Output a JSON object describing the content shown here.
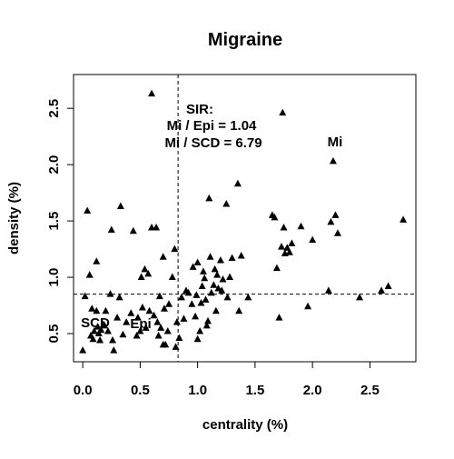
{
  "chart_data": {
    "type": "scatter",
    "title": "Migraine",
    "xlabel": "centrality (%)",
    "ylabel": "density (%)",
    "xlim": [
      -0.08,
      2.9
    ],
    "ylim": [
      0.25,
      2.8
    ],
    "xticks": [
      0.0,
      0.5,
      1.0,
      1.5,
      2.0,
      2.5
    ],
    "xtick_labels": [
      "0.0",
      "0.5",
      "1.0",
      "1.5",
      "2.0",
      "2.5"
    ],
    "yticks": [
      0.5,
      1.0,
      1.5,
      2.0,
      2.5
    ],
    "ytick_labels": [
      "0.5",
      "1.0",
      "1.5",
      "2.0",
      "2.5"
    ],
    "grid": false,
    "marker": "triangle",
    "reference_lines": {
      "vertical_x": 0.83,
      "horizontal_y": 0.85
    },
    "annotations": {
      "sir_heading": "SIR:",
      "sir_line1": "Mi / Epi = 1.04",
      "sir_line2": "Mi / SCD = 6.79",
      "label_mi": "Mi",
      "label_scd": "SCD",
      "label_epi": "Epi"
    },
    "points": [
      [
        0.0,
        0.35
      ],
      [
        0.02,
        0.83
      ],
      [
        0.04,
        1.59
      ],
      [
        0.06,
        1.02
      ],
      [
        0.07,
        0.48
      ],
      [
        0.08,
        0.72
      ],
      [
        0.09,
        0.45
      ],
      [
        0.1,
        0.52
      ],
      [
        0.12,
        0.7
      ],
      [
        0.12,
        1.14
      ],
      [
        0.13,
        0.56
      ],
      [
        0.14,
        0.5
      ],
      [
        0.15,
        0.44
      ],
      [
        0.16,
        0.53
      ],
      [
        0.18,
        0.58
      ],
      [
        0.19,
        0.57
      ],
      [
        0.2,
        0.7
      ],
      [
        0.22,
        0.52
      ],
      [
        0.24,
        0.85
      ],
      [
        0.25,
        1.42
      ],
      [
        0.26,
        0.44
      ],
      [
        0.27,
        0.35
      ],
      [
        0.3,
        0.64
      ],
      [
        0.32,
        0.82
      ],
      [
        0.33,
        1.63
      ],
      [
        0.35,
        0.49
      ],
      [
        0.38,
        0.6
      ],
      [
        0.42,
        0.68
      ],
      [
        0.44,
        1.41
      ],
      [
        0.47,
        0.48
      ],
      [
        0.48,
        0.64
      ],
      [
        0.5,
        0.52
      ],
      [
        0.51,
        1.0
      ],
      [
        0.52,
        0.73
      ],
      [
        0.54,
        1.07
      ],
      [
        0.55,
        0.55
      ],
      [
        0.57,
        1.03
      ],
      [
        0.58,
        0.7
      ],
      [
        0.6,
        2.63
      ],
      [
        0.6,
        1.44
      ],
      [
        0.62,
        0.66
      ],
      [
        0.64,
        1.44
      ],
      [
        0.65,
        0.6
      ],
      [
        0.66,
        0.48
      ],
      [
        0.67,
        0.83
      ],
      [
        0.68,
        0.55
      ],
      [
        0.7,
        1.18
      ],
      [
        0.7,
        0.4
      ],
      [
        0.71,
        0.72
      ],
      [
        0.72,
        0.4
      ],
      [
        0.74,
        0.52
      ],
      [
        0.75,
        0.76
      ],
      [
        0.78,
        1.0
      ],
      [
        0.8,
        1.25
      ],
      [
        0.81,
        0.38
      ],
      [
        0.82,
        0.6
      ],
      [
        0.84,
        0.46
      ],
      [
        0.86,
        0.82
      ],
      [
        0.88,
        0.63
      ],
      [
        0.9,
        0.88
      ],
      [
        0.92,
        0.86
      ],
      [
        0.95,
        0.76
      ],
      [
        0.96,
        1.09
      ],
      [
        0.98,
        0.65
      ],
      [
        0.99,
        0.84
      ],
      [
        1.0,
        0.45
      ],
      [
        1.0,
        1.13
      ],
      [
        1.02,
        0.52
      ],
      [
        1.03,
        0.77
      ],
      [
        1.04,
        0.92
      ],
      [
        1.05,
        1.05
      ],
      [
        1.06,
        0.99
      ],
      [
        1.07,
        0.8
      ],
      [
        1.08,
        0.57
      ],
      [
        1.09,
        0.61
      ],
      [
        1.1,
        1.7
      ],
      [
        1.11,
        1.18
      ],
      [
        1.12,
        0.86
      ],
      [
        1.14,
        0.93
      ],
      [
        1.15,
        1.07
      ],
      [
        1.16,
        0.7
      ],
      [
        1.17,
        1.02
      ],
      [
        1.18,
        0.9
      ],
      [
        1.2,
        1.15
      ],
      [
        1.21,
        0.88
      ],
      [
        1.22,
        0.98
      ],
      [
        1.25,
        1.65
      ],
      [
        1.26,
        0.82
      ],
      [
        1.28,
        1.0
      ],
      [
        1.3,
        1.17
      ],
      [
        1.35,
        1.83
      ],
      [
        1.36,
        0.7
      ],
      [
        1.38,
        1.19
      ],
      [
        1.44,
        0.82
      ],
      [
        1.65,
        1.55
      ],
      [
        1.67,
        1.53
      ],
      [
        1.69,
        1.08
      ],
      [
        1.71,
        0.64
      ],
      [
        1.73,
        1.27
      ],
      [
        1.74,
        2.46
      ],
      [
        1.75,
        1.44
      ],
      [
        1.76,
        1.21
      ],
      [
        1.78,
        1.26
      ],
      [
        1.8,
        1.22
      ],
      [
        1.82,
        1.3
      ],
      [
        1.9,
        1.45
      ],
      [
        1.96,
        0.74
      ],
      [
        2.0,
        1.33
      ],
      [
        2.14,
        0.88
      ],
      [
        2.16,
        1.49
      ],
      [
        2.18,
        2.03
      ],
      [
        2.2,
        1.55
      ],
      [
        2.22,
        1.39
      ],
      [
        2.41,
        0.82
      ],
      [
        2.6,
        0.88
      ],
      [
        2.66,
        0.92
      ],
      [
        2.79,
        1.51
      ]
    ]
  }
}
